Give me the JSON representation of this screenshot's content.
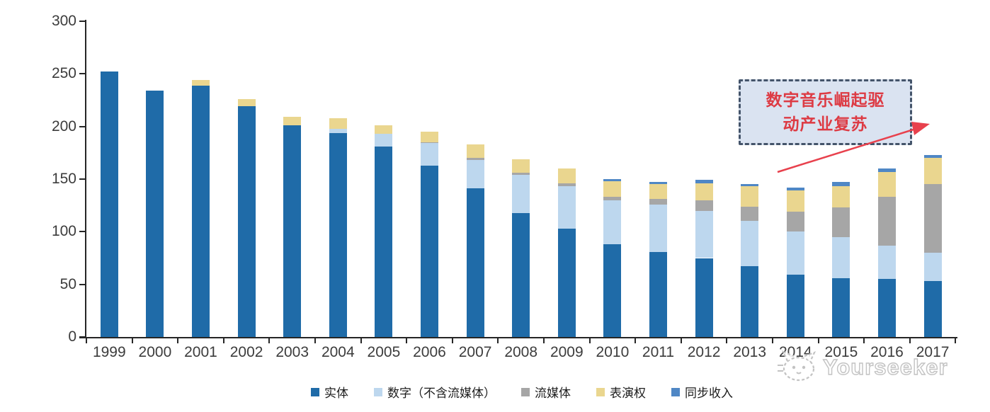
{
  "chart_data": {
    "type": "bar",
    "stacked": true,
    "title": "",
    "xlabel": "",
    "ylabel": "",
    "ylim": [
      0,
      300
    ],
    "yticks": [
      0,
      50,
      100,
      150,
      200,
      250,
      300
    ],
    "grid": false,
    "legend_position": "bottom",
    "x": [
      "1999",
      "2000",
      "2001",
      "2002",
      "2003",
      "2004",
      "2005",
      "2006",
      "2007",
      "2008",
      "2009",
      "2010",
      "2011",
      "2012",
      "2013",
      "2014",
      "2015",
      "2016",
      "2017"
    ],
    "series": [
      {
        "name": "实体",
        "color": "#1F6BA8",
        "values": [
          252,
          234,
          239,
          219,
          201,
          194,
          181,
          163,
          141,
          118,
          103,
          88,
          81,
          75,
          67,
          59,
          56,
          55,
          53
        ]
      },
      {
        "name": "数字（不含流媒体）",
        "color": "#BDD7EE",
        "values": [
          0,
          0,
          0,
          0,
          0,
          4,
          12,
          21,
          27,
          36,
          40,
          42,
          45,
          45,
          43,
          41,
          39,
          32,
          27
        ]
      },
      {
        "name": "流媒体",
        "color": "#A6A6A6",
        "values": [
          0,
          0,
          0,
          0,
          0,
          0,
          0,
          1,
          2,
          2,
          3,
          3,
          5,
          10,
          14,
          19,
          28,
          46,
          65
        ]
      },
      {
        "name": "表演权",
        "color": "#EAD68F",
        "values": [
          0,
          0,
          5,
          7,
          8,
          10,
          8,
          10,
          13,
          13,
          14,
          15,
          14,
          16,
          19,
          20,
          20,
          24,
          25
        ]
      },
      {
        "name": "同步收入",
        "color": "#4F87C5",
        "values": [
          0,
          0,
          0,
          0,
          0,
          0,
          0,
          0,
          0,
          0,
          0,
          2,
          2,
          3,
          2,
          3,
          4,
          3,
          3
        ]
      }
    ]
  },
  "annotation": {
    "text": "数字音乐崛起驱动产业复苏",
    "lines": [
      "数字音乐崛起驱",
      "动产业复苏"
    ],
    "fill_color": "#DAE3F1",
    "border_color": "#44546A",
    "text_color": "#DD3B44",
    "arrow_color": "#E8414D"
  },
  "watermark": {
    "text": "Yourseeker",
    "logo": "cat-outline"
  },
  "axis_color": "#262626",
  "label_color": "#3c3c3c"
}
